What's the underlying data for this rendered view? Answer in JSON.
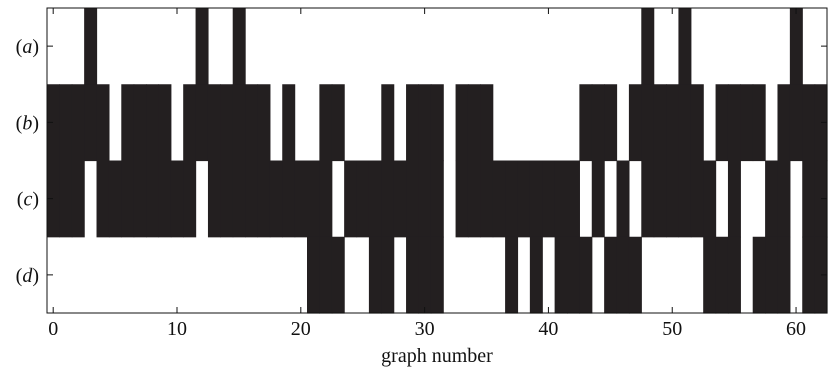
{
  "chart_data": {
    "type": "heatmap",
    "xlabel": "graph number",
    "xlim": [
      -0.5,
      62.5
    ],
    "xticks": [
      0,
      10,
      20,
      30,
      40,
      50,
      60
    ],
    "rows": [
      {
        "label": "(a)",
        "filled": [
          3,
          12,
          15,
          48,
          51,
          60
        ]
      },
      {
        "label": "(b)",
        "filled": [
          0,
          1,
          2,
          3,
          4,
          6,
          7,
          8,
          9,
          11,
          12,
          13,
          14,
          15,
          16,
          17,
          19,
          22,
          23,
          27,
          29,
          30,
          31,
          33,
          34,
          35,
          43,
          44,
          45,
          47,
          48,
          49,
          50,
          51,
          52,
          54,
          55,
          56,
          57,
          59,
          60,
          61,
          62
        ]
      },
      {
        "label": "(c)",
        "filled": [
          0,
          1,
          2,
          4,
          5,
          6,
          7,
          8,
          9,
          10,
          11,
          13,
          14,
          15,
          16,
          17,
          18,
          19,
          20,
          21,
          22,
          24,
          25,
          26,
          27,
          28,
          29,
          30,
          31,
          33,
          34,
          35,
          36,
          37,
          38,
          39,
          40,
          41,
          42,
          44,
          46,
          48,
          49,
          50,
          51,
          52,
          53,
          55,
          58,
          59,
          61,
          62
        ]
      },
      {
        "label": "(d)",
        "filled": [
          21,
          22,
          23,
          26,
          27,
          29,
          30,
          31,
          37,
          39,
          41,
          42,
          43,
          45,
          46,
          47,
          53,
          54,
          55,
          57,
          58,
          59,
          61,
          62
        ]
      }
    ]
  }
}
